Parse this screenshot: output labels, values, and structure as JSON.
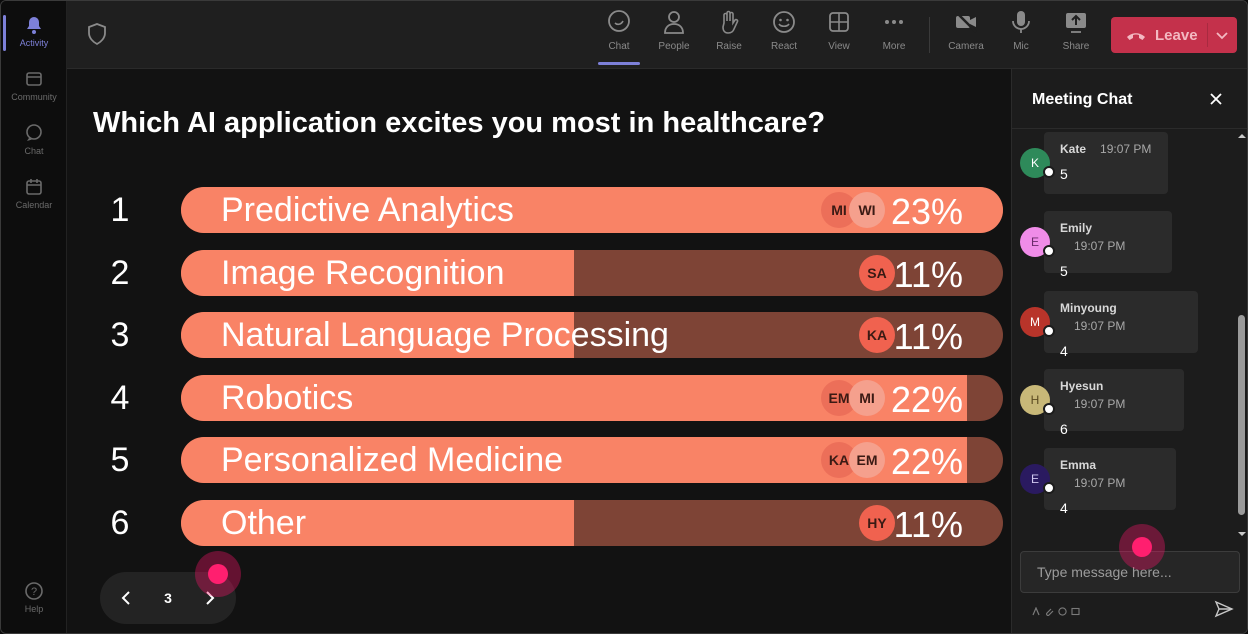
{
  "rail": {
    "items": [
      {
        "label": "Activity",
        "icon": "bell-icon",
        "active": true
      },
      {
        "label": "Community",
        "icon": "community-icon",
        "active": false
      },
      {
        "label": "Chat",
        "icon": "chat-icon",
        "active": false
      },
      {
        "label": "Calendar",
        "icon": "calendar-icon",
        "active": false
      }
    ],
    "help": {
      "label": "Help",
      "icon": "help-icon"
    }
  },
  "toolbar": {
    "items": [
      {
        "label": "Chat",
        "icon": "chat-icon",
        "active": true
      },
      {
        "label": "People",
        "icon": "people-icon",
        "active": false
      },
      {
        "label": "Raise",
        "icon": "hand-icon",
        "active": false
      },
      {
        "label": "React",
        "icon": "smile-icon",
        "active": false
      },
      {
        "label": "View",
        "icon": "grid-icon",
        "active": false
      },
      {
        "label": "More",
        "icon": "ellipsis-icon",
        "active": false
      },
      {
        "label": "Camera",
        "icon": "camera-off-icon",
        "active": false
      },
      {
        "label": "Mic",
        "icon": "mic-icon",
        "active": false
      },
      {
        "label": "Share",
        "icon": "share-icon",
        "active": false
      }
    ],
    "leave_label": "Leave"
  },
  "poll": {
    "question": "Which AI application excites you most in healthcare?",
    "options": [
      {
        "num": "1",
        "label": "Predictive Analytics",
        "percent_text": "23%",
        "percent": 23,
        "voters": [
          "MI",
          "WI"
        ]
      },
      {
        "num": "2",
        "label": "Image Recognition",
        "percent_text": "11%",
        "percent": 11,
        "voters": [
          "SA"
        ]
      },
      {
        "num": "3",
        "label": "Natural Language Processing",
        "percent_text": "11%",
        "percent": 11,
        "voters": [
          "KA"
        ]
      },
      {
        "num": "4",
        "label": "Robotics",
        "percent_text": "22%",
        "percent": 22,
        "voters": [
          "EM",
          "MI"
        ]
      },
      {
        "num": "5",
        "label": "Personalized Medicine",
        "percent_text": "22%",
        "percent": 22,
        "voters": [
          "KA",
          "EM"
        ]
      },
      {
        "num": "6",
        "label": "Other",
        "percent_text": "11%",
        "percent": 11,
        "voters": [
          "HY"
        ]
      }
    ],
    "max_percent": 23,
    "page": "3"
  },
  "chat": {
    "title": "Meeting Chat",
    "messages": [
      {
        "initial": "K",
        "name": "Kate",
        "time": "19:07 PM",
        "text": "5",
        "color": "#2e8a5a",
        "text_color": "#ffffff"
      },
      {
        "initial": "E",
        "name": "Emily",
        "time": "19:07 PM",
        "text": "5",
        "color": "#f08ce8",
        "text_color": "#6a2a6a"
      },
      {
        "initial": "M",
        "name": "Minyoung",
        "time": "19:07 PM",
        "text": "4",
        "color": "#b8342a",
        "text_color": "#ffffff"
      },
      {
        "initial": "H",
        "name": "Hyesun",
        "time": "19:07 PM",
        "text": "6",
        "color": "#c8b878",
        "text_color": "#5a4a20"
      },
      {
        "initial": "E",
        "name": "Emma",
        "time": "19:07 PM",
        "text": "4",
        "color": "#2a1a60",
        "text_color": "#d0c8f0"
      }
    ],
    "input_placeholder": "Type message here..."
  },
  "colors": {
    "accent": "#7d80d8",
    "bar_fill": "#f98366",
    "bar_track": "#7e4436",
    "leave": "#c4314b"
  }
}
